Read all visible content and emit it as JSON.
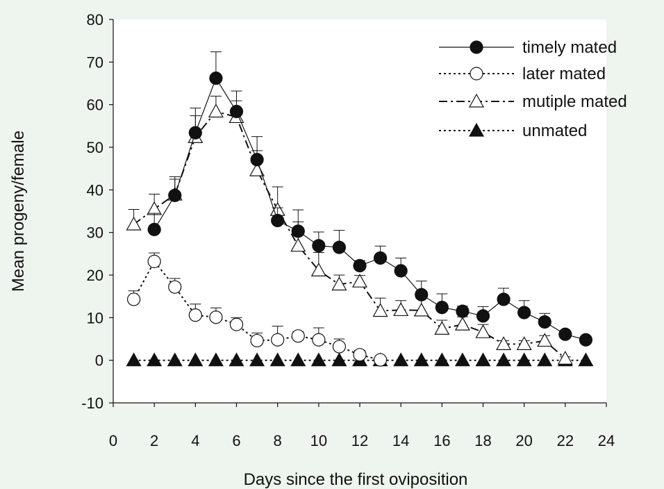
{
  "chart_data": {
    "type": "line",
    "xlabel": "Days since the first oviposition",
    "ylabel": "Mean progeny/female",
    "xlim": [
      0,
      24
    ],
    "ylim": [
      -10,
      80
    ],
    "xticks": [
      "0",
      "2",
      "4",
      "6",
      "8",
      "10",
      "12",
      "14",
      "16",
      "18",
      "20",
      "22",
      "24"
    ],
    "yticks": [
      "-10",
      "0",
      "10",
      "20",
      "30",
      "40",
      "50",
      "60",
      "70",
      "80"
    ],
    "grid": false,
    "legend_position": "top-right",
    "series": [
      {
        "name": "timely mated",
        "line_style": "solid",
        "marker": "filled-circle",
        "x": [
          2,
          3,
          4,
          5,
          6,
          7,
          8,
          9,
          10,
          11,
          12,
          13,
          14,
          15,
          16,
          17,
          18,
          19,
          20,
          21,
          22,
          23
        ],
        "y": [
          30.7,
          38.7,
          53.4,
          66.2,
          58.4,
          47.1,
          32.8,
          30.3,
          26.9,
          26.5,
          22.2,
          24.0,
          21.0,
          15.4,
          12.4,
          11.5,
          10.4,
          14.3,
          11.2,
          9.0,
          6.1,
          4.8
        ],
        "err": [
          3.8,
          3.8,
          5.8,
          6.2,
          4.8,
          5.4,
          3.0,
          5.0,
          3.2,
          4.0,
          1.2,
          2.8,
          3.0,
          3.2,
          3.2,
          1.2,
          2.2,
          2.6,
          2.8,
          2.0,
          0.8,
          0.6
        ]
      },
      {
        "name": "later mated",
        "line_style": "dotted",
        "marker": "open-circle",
        "x": [
          1,
          2,
          3,
          4,
          5,
          6,
          7,
          8,
          9,
          10,
          11,
          12,
          13
        ],
        "y": [
          14.3,
          23.2,
          17.2,
          10.6,
          10.1,
          8.4,
          4.6,
          4.8,
          5.7,
          4.8,
          3.2,
          1.3,
          0.1
        ],
        "err": [
          2.0,
          2.0,
          2.0,
          2.6,
          2.2,
          1.6,
          1.8,
          3.2,
          1.0,
          2.8,
          1.8,
          1.0,
          0.5
        ]
      },
      {
        "name": "mutiple mated",
        "line_style": "dash-dot",
        "marker": "open-triangle",
        "x": [
          1,
          2,
          3,
          4,
          5,
          6,
          7,
          8,
          9,
          10,
          11,
          12,
          13,
          14,
          15,
          16,
          17,
          18,
          19,
          20,
          21,
          22
        ],
        "y": [
          31.9,
          35.5,
          38.9,
          52.4,
          58.4,
          57.1,
          44.6,
          35.3,
          26.9,
          21.1,
          17.8,
          18.5,
          11.6,
          11.8,
          11.7,
          7.4,
          8.4,
          6.6,
          3.8,
          3.8,
          4.6,
          0.4
        ],
        "err": [
          3.5,
          3.5,
          4.2,
          5.0,
          3.6,
          3.8,
          4.6,
          5.4,
          5.6,
          4.2,
          2.2,
          1.4,
          3.0,
          2.2,
          2.8,
          2.0,
          1.8,
          1.8,
          0.8,
          0.8,
          1.2,
          0.4
        ]
      },
      {
        "name": "unmated",
        "line_style": "dotted",
        "marker": "filled-triangle",
        "x": [
          1,
          2,
          3,
          4,
          5,
          6,
          7,
          8,
          9,
          10,
          11,
          12,
          13,
          14,
          15,
          16,
          17,
          18,
          19,
          20,
          21,
          22,
          23
        ],
        "y": [
          0,
          0,
          0,
          0,
          0,
          0,
          0,
          0,
          0,
          0,
          0,
          0,
          0,
          0,
          0,
          0,
          0,
          0,
          0,
          0,
          0,
          0,
          0
        ],
        "err": [
          0,
          0,
          0,
          0,
          0,
          0,
          0,
          0,
          0,
          0,
          0,
          0,
          0,
          0,
          0,
          0,
          0,
          0,
          0,
          0,
          0,
          0,
          0
        ]
      }
    ]
  },
  "colors": {
    "background": "#eef4ee",
    "plot_background": "#ffffff",
    "ink": "#111111"
  }
}
